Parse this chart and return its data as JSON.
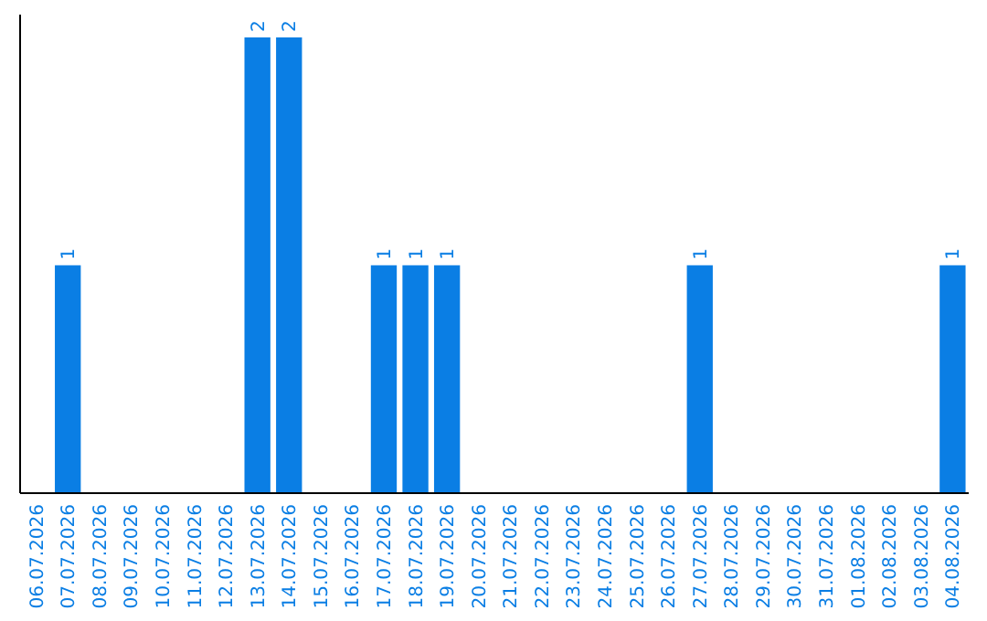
{
  "chart_data": {
    "type": "bar",
    "categories": [
      "06.07.2026",
      "07.07.2026",
      "08.07.2026",
      "09.07.2026",
      "10.07.2026",
      "11.07.2026",
      "12.07.2026",
      "13.07.2026",
      "14.07.2026",
      "15.07.2026",
      "16.07.2026",
      "17.07.2026",
      "18.07.2026",
      "19.07.2026",
      "20.07.2026",
      "21.07.2026",
      "22.07.2026",
      "23.07.2026",
      "24.07.2026",
      "25.07.2026",
      "26.07.2026",
      "27.07.2026",
      "28.07.2026",
      "29.07.2026",
      "30.07.2026",
      "31.07.2026",
      "01.08.2026",
      "02.08.2026",
      "03.08.2026",
      "04.08.2026"
    ],
    "values": [
      0,
      1,
      0,
      0,
      0,
      0,
      0,
      2,
      2,
      0,
      0,
      1,
      1,
      1,
      0,
      0,
      0,
      0,
      0,
      0,
      0,
      1,
      0,
      0,
      0,
      0,
      0,
      0,
      0,
      1
    ],
    "color": "#0a7ee4",
    "ylim": [
      0,
      2.1
    ],
    "value_labels": [
      null,
      "1",
      null,
      null,
      null,
      null,
      null,
      "2",
      "2",
      null,
      null,
      "1",
      "1",
      "1",
      null,
      null,
      null,
      null,
      null,
      null,
      null,
      "1",
      null,
      null,
      null,
      null,
      null,
      null,
      null,
      "1"
    ],
    "tick_labels": "x"
  }
}
